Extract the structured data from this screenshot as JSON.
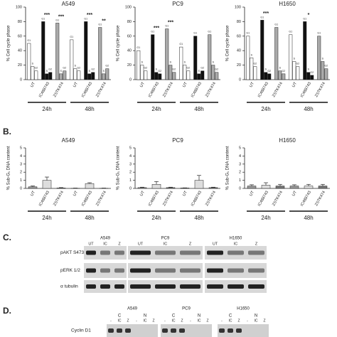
{
  "chart_data": [
    {
      "type": "bar",
      "title": "A549",
      "ylabel": "% Cell cycle phase",
      "ylim": [
        0,
        100
      ],
      "yticks": [
        0,
        20,
        40,
        60,
        80,
        100
      ],
      "categories": [
        "UT",
        "IC488743",
        "ZSTK474",
        "UT",
        "IC488743",
        "ZSTK474"
      ],
      "groups": [
        "24h",
        "48h"
      ],
      "category_colors": [
        "#ffffff",
        "#111111",
        "#aaaaaa",
        "#ffffff",
        "#111111",
        "#aaaaaa"
      ],
      "annotations": [
        null,
        "***",
        "***",
        null,
        "***",
        "**"
      ],
      "series": [
        {
          "name": "G1",
          "values": [
            50,
            80,
            78,
            55,
            80,
            72
          ]
        },
        {
          "name": "S",
          "values": [
            18,
            8,
            8,
            15,
            8,
            8
          ]
        },
        {
          "name": "G2",
          "values": [
            12,
            10,
            12,
            12,
            10,
            15
          ]
        }
      ]
    },
    {
      "type": "bar",
      "title": "PC9",
      "ylabel": "% Cell cycle phase",
      "ylim": [
        0,
        100
      ],
      "yticks": [
        0,
        20,
        40,
        60,
        80,
        100
      ],
      "categories": [
        "UT",
        "IC488743",
        "ZSTK474",
        "UT",
        "IC488743",
        "ZSTK474"
      ],
      "groups": [
        "24h",
        "48h"
      ],
      "category_colors": [
        "#ffffff",
        "#111111",
        "#aaaaaa",
        "#ffffff",
        "#111111",
        "#aaaaaa"
      ],
      "annotations": [
        null,
        "***",
        "***",
        null,
        null,
        null
      ],
      "series": [
        {
          "name": "G1",
          "values": [
            40,
            62,
            70,
            45,
            60,
            62
          ]
        },
        {
          "name": "S",
          "values": [
            20,
            10,
            20,
            20,
            8,
            20
          ]
        },
        {
          "name": "G2",
          "values": [
            12,
            8,
            10,
            12,
            12,
            10
          ]
        }
      ]
    },
    {
      "type": "bar",
      "title": "H1650",
      "ylabel": "% Cell cycle phase",
      "ylim": [
        0,
        100
      ],
      "yticks": [
        0,
        20,
        40,
        60,
        80,
        100
      ],
      "categories": [
        "UT",
        "IC488743",
        "ZSTK474",
        "UT",
        "IC488743",
        "ZSTK474"
      ],
      "groups": [
        "24h",
        "48h"
      ],
      "category_colors": [
        "#ffffff",
        "#111111",
        "#aaaaaa",
        "#ffffff",
        "#111111",
        "#aaaaaa"
      ],
      "annotations": [
        null,
        "***",
        null,
        null,
        "*",
        null
      ],
      "series": [
        {
          "name": "G1",
          "values": [
            60,
            82,
            72,
            62,
            80,
            60
          ]
        },
        {
          "name": "S",
          "values": [
            30,
            10,
            12,
            25,
            10,
            25
          ]
        },
        {
          "name": "G2",
          "values": [
            18,
            8,
            8,
            18,
            6,
            15
          ]
        }
      ]
    },
    {
      "type": "errorbar",
      "title": "A549",
      "ylabel": "% Sub-G₁ DNA content",
      "ylim": [
        0,
        5
      ],
      "yticks": [
        0,
        1,
        2,
        3,
        4,
        5
      ],
      "categories": [
        "UT",
        "IC488743",
        "ZSTK474",
        "UT",
        "IC488743",
        "ZSTK474"
      ],
      "groups": [
        "24h",
        "48h"
      ],
      "category_colors": [
        "#999999",
        "#dddddd",
        "#777777",
        "#999999",
        "#dddddd",
        "#777777"
      ],
      "values": [
        0.2,
        1.0,
        0.05,
        0.02,
        0.6,
        0.02
      ],
      "errors": [
        0.1,
        0.4,
        0.05,
        0.02,
        0.1,
        0.02
      ]
    },
    {
      "type": "errorbar",
      "title": "PC9",
      "ylabel": "% Sub-G₁ DNA content",
      "ylim": [
        0,
        5
      ],
      "yticks": [
        0,
        1,
        2,
        3,
        4,
        5
      ],
      "categories": [
        "UT",
        "IC488743",
        "ZSTK474",
        "UT",
        "IC488743",
        "ZSTK474"
      ],
      "groups": [
        "24h",
        "48h"
      ],
      "category_colors": [
        "#999999",
        "#dddddd",
        "#777777",
        "#999999",
        "#dddddd",
        "#777777"
      ],
      "values": [
        0.1,
        0.5,
        0.1,
        0.05,
        1.0,
        0.1
      ],
      "errors": [
        0.05,
        0.35,
        0.05,
        0.02,
        0.6,
        0.05
      ]
    },
    {
      "type": "errorbar",
      "title": "H1650",
      "ylabel": "% Sub-G₁ DNA content",
      "ylim": [
        0,
        5
      ],
      "yticks": [
        0,
        1,
        2,
        3,
        4,
        5
      ],
      "categories": [
        "UT",
        "IC488743",
        "ZSTK474",
        "UT",
        "IC488743",
        "ZSTK474"
      ],
      "groups": [
        "24h",
        "48h"
      ],
      "category_colors": [
        "#999999",
        "#dddddd",
        "#777777",
        "#999999",
        "#dddddd",
        "#777777"
      ],
      "values": [
        0.3,
        0.4,
        0.3,
        0.3,
        0.3,
        0.3
      ],
      "errors": [
        0.15,
        0.3,
        0.2,
        0.15,
        0.2,
        0.2
      ]
    }
  ],
  "panel_b_label": "B.",
  "blot_c": {
    "label": "C.",
    "cell_lines": [
      "A549",
      "PC9",
      "H1650"
    ],
    "lanes": [
      "UT",
      "IC",
      "Z"
    ],
    "rows": [
      "pAKT S473",
      "pERK 1/2",
      "α tubulin"
    ]
  },
  "blot_d": {
    "label": "D.",
    "cell_lines": [
      "A549",
      "PC9",
      "H1650"
    ],
    "fractions": [
      "C",
      "N"
    ],
    "lanes": [
      "-",
      "IC",
      "Z"
    ],
    "rows": [
      "Cyclin D1"
    ]
  }
}
